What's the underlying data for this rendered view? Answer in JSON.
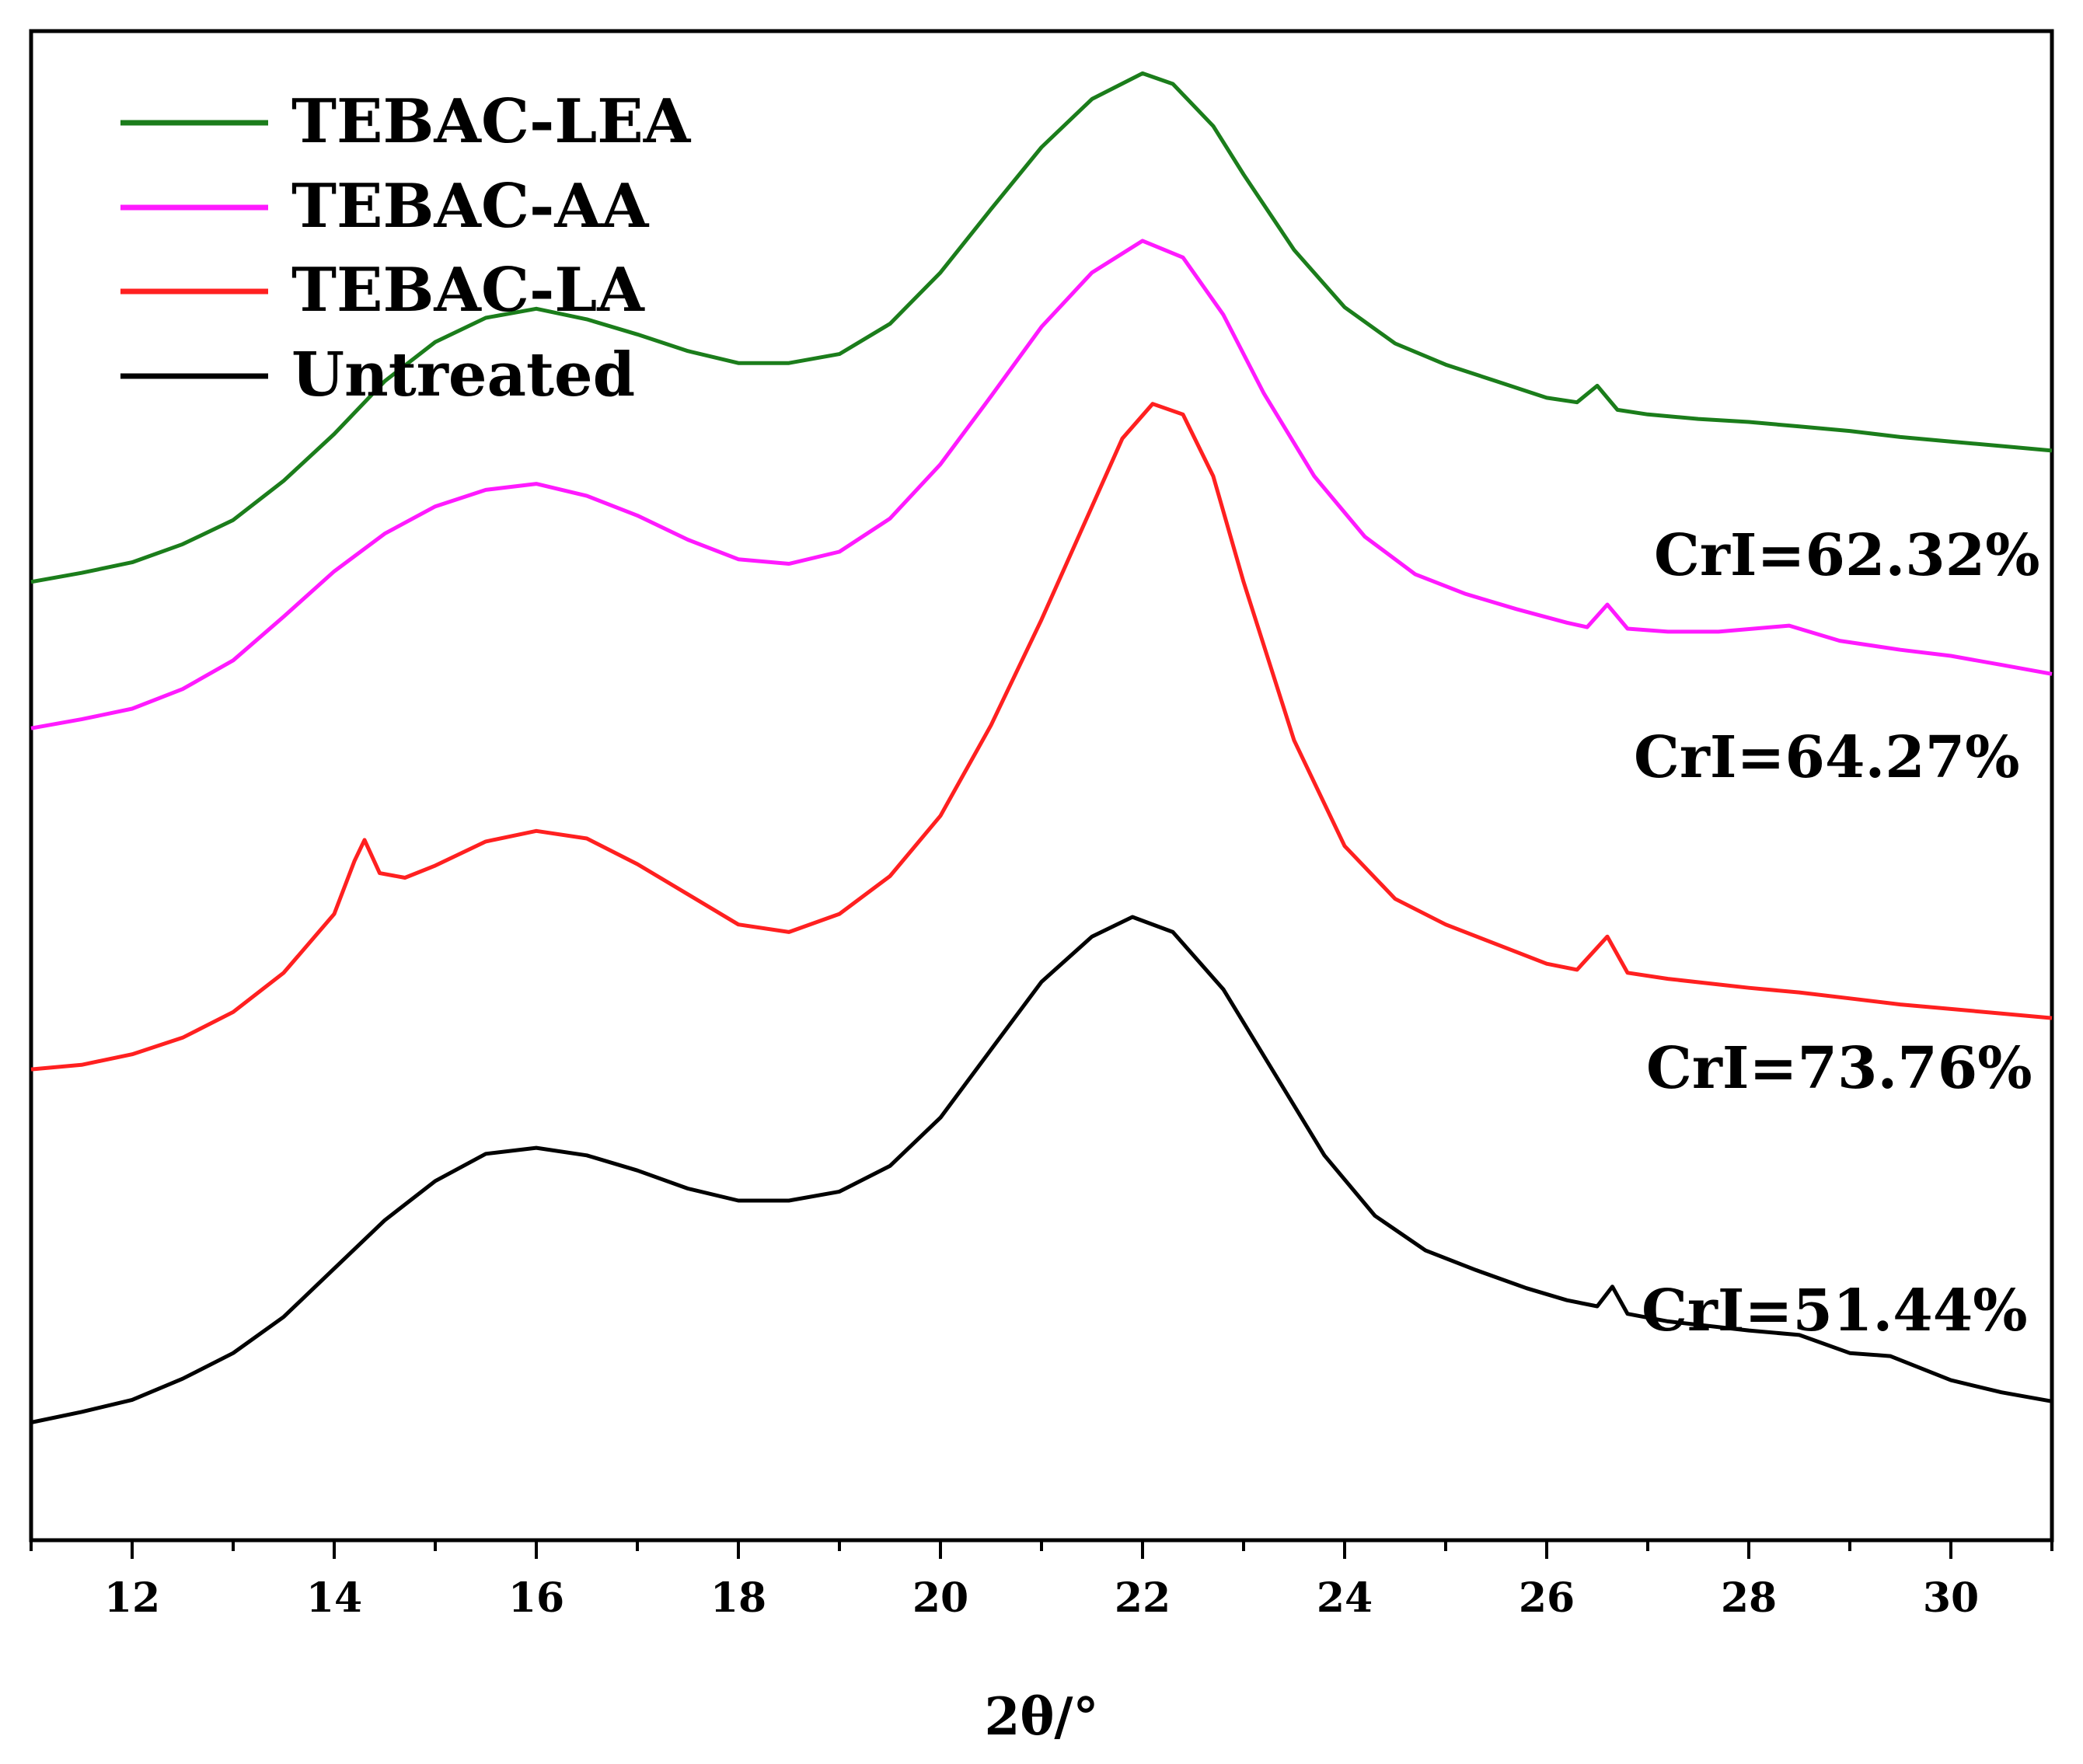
{
  "chart_data": {
    "type": "line",
    "title": "",
    "xlabel": "2θ/°",
    "ylabel": "",
    "xlim": [
      11,
      31
    ],
    "ylim": [
      0,
      100
    ],
    "x_ticks": [
      12,
      14,
      16,
      18,
      20,
      22,
      24,
      26,
      28,
      30
    ],
    "x_tick_labels": [
      "12",
      "14",
      "16",
      "18",
      "20",
      "22",
      "24",
      "26",
      "28",
      "30"
    ],
    "y_ticks_shown": false,
    "legend_position": "top-left",
    "series": [
      {
        "name": "TEBAC-LEA",
        "color": "#1b7d1b",
        "crI_label": "CrI=62.32%",
        "points": [
          [
            11,
            63.5
          ],
          [
            11.5,
            64.1
          ],
          [
            12,
            64.8
          ],
          [
            12.5,
            66.0
          ],
          [
            13,
            67.6
          ],
          [
            13.5,
            70.2
          ],
          [
            14,
            73.3
          ],
          [
            14.5,
            76.8
          ],
          [
            15,
            79.4
          ],
          [
            15.5,
            81.0
          ],
          [
            16,
            81.6
          ],
          [
            16.5,
            80.9
          ],
          [
            17,
            79.9
          ],
          [
            17.5,
            78.8
          ],
          [
            18,
            78.0
          ],
          [
            18.5,
            78.0
          ],
          [
            19,
            78.6
          ],
          [
            19.5,
            80.6
          ],
          [
            20,
            84.0
          ],
          [
            20.5,
            88.2
          ],
          [
            21,
            92.3
          ],
          [
            21.5,
            95.5
          ],
          [
            22,
            97.2
          ],
          [
            22.3,
            96.5
          ],
          [
            22.7,
            93.7
          ],
          [
            23,
            90.5
          ],
          [
            23.5,
            85.5
          ],
          [
            24,
            81.7
          ],
          [
            24.5,
            79.3
          ],
          [
            25,
            77.9
          ],
          [
            25.5,
            76.8
          ],
          [
            26,
            75.7
          ],
          [
            26.3,
            75.4
          ],
          [
            26.5,
            76.5
          ],
          [
            26.7,
            74.9
          ],
          [
            27,
            74.6
          ],
          [
            27.5,
            74.3
          ],
          [
            28,
            74.1
          ],
          [
            28.5,
            73.8
          ],
          [
            29,
            73.5
          ],
          [
            29.5,
            73.1
          ],
          [
            30,
            72.8
          ],
          [
            30.5,
            72.5
          ],
          [
            31,
            72.2
          ]
        ]
      },
      {
        "name": "TEBAC-AA",
        "color": "#ff1aff",
        "crI_label": "CrI=64.27%",
        "points": [
          [
            11,
            53.8
          ],
          [
            11.5,
            54.4
          ],
          [
            12,
            55.1
          ],
          [
            12.5,
            56.4
          ],
          [
            13,
            58.3
          ],
          [
            13.5,
            61.2
          ],
          [
            14,
            64.2
          ],
          [
            14.5,
            66.7
          ],
          [
            15,
            68.5
          ],
          [
            15.5,
            69.6
          ],
          [
            16,
            70.0
          ],
          [
            16.5,
            69.2
          ],
          [
            17,
            67.9
          ],
          [
            17.5,
            66.3
          ],
          [
            18,
            65.0
          ],
          [
            18.5,
            64.7
          ],
          [
            19,
            65.5
          ],
          [
            19.5,
            67.7
          ],
          [
            20,
            71.3
          ],
          [
            20.5,
            75.8
          ],
          [
            21,
            80.4
          ],
          [
            21.5,
            84.0
          ],
          [
            22,
            86.1
          ],
          [
            22.4,
            85.0
          ],
          [
            22.8,
            81.2
          ],
          [
            23.2,
            76.0
          ],
          [
            23.7,
            70.5
          ],
          [
            24.2,
            66.5
          ],
          [
            24.7,
            64.0
          ],
          [
            25.2,
            62.7
          ],
          [
            25.7,
            61.7
          ],
          [
            26.2,
            60.8
          ],
          [
            26.4,
            60.5
          ],
          [
            26.6,
            62.0
          ],
          [
            26.8,
            60.4
          ],
          [
            27.2,
            60.2
          ],
          [
            27.7,
            60.2
          ],
          [
            28.4,
            60.6
          ],
          [
            28.9,
            59.6
          ],
          [
            29.5,
            59.0
          ],
          [
            30,
            58.6
          ],
          [
            30.5,
            58.0
          ],
          [
            31,
            57.4
          ]
        ]
      },
      {
        "name": "TEBAC-LA",
        "color": "#ff2020",
        "crI_label": "CrI=73.76%",
        "points": [
          [
            11,
            31.2
          ],
          [
            11.5,
            31.5
          ],
          [
            12,
            32.2
          ],
          [
            12.5,
            33.3
          ],
          [
            13,
            35.0
          ],
          [
            13.5,
            37.6
          ],
          [
            14,
            41.5
          ],
          [
            14.2,
            45.0
          ],
          [
            14.3,
            46.4
          ],
          [
            14.45,
            44.2
          ],
          [
            14.7,
            43.9
          ],
          [
            15,
            44.7
          ],
          [
            15.5,
            46.3
          ],
          [
            16,
            47.0
          ],
          [
            16.5,
            46.5
          ],
          [
            17,
            44.8
          ],
          [
            17.5,
            42.8
          ],
          [
            18,
            40.8
          ],
          [
            18.5,
            40.3
          ],
          [
            19,
            41.5
          ],
          [
            19.5,
            44.0
          ],
          [
            20,
            48.0
          ],
          [
            20.5,
            54.0
          ],
          [
            21,
            61.0
          ],
          [
            21.5,
            68.5
          ],
          [
            21.8,
            73.0
          ],
          [
            22.1,
            75.3
          ],
          [
            22.4,
            74.6
          ],
          [
            22.7,
            70.5
          ],
          [
            23,
            63.5
          ],
          [
            23.5,
            53.0
          ],
          [
            24,
            46.0
          ],
          [
            24.5,
            42.5
          ],
          [
            25,
            40.8
          ],
          [
            25.5,
            39.5
          ],
          [
            26,
            38.2
          ],
          [
            26.3,
            37.8
          ],
          [
            26.6,
            40.0
          ],
          [
            26.8,
            37.6
          ],
          [
            27.2,
            37.2
          ],
          [
            28,
            36.6
          ],
          [
            28.5,
            36.3
          ],
          [
            29,
            35.9
          ],
          [
            29.5,
            35.5
          ],
          [
            30,
            35.2
          ],
          [
            30.5,
            34.9
          ],
          [
            31,
            34.6
          ]
        ]
      },
      {
        "name": "Untreated",
        "color": "#000000",
        "crI_label": "CrI=51.44%",
        "points": [
          [
            11,
            7.8
          ],
          [
            11.5,
            8.5
          ],
          [
            12,
            9.3
          ],
          [
            12.5,
            10.7
          ],
          [
            13,
            12.4
          ],
          [
            13.5,
            14.8
          ],
          [
            14,
            18.0
          ],
          [
            14.5,
            21.2
          ],
          [
            15,
            23.8
          ],
          [
            15.5,
            25.6
          ],
          [
            16,
            26.0
          ],
          [
            16.5,
            25.5
          ],
          [
            17,
            24.5
          ],
          [
            17.5,
            23.3
          ],
          [
            18,
            22.5
          ],
          [
            18.5,
            22.5
          ],
          [
            19,
            23.1
          ],
          [
            19.5,
            24.8
          ],
          [
            20,
            28.0
          ],
          [
            20.5,
            32.5
          ],
          [
            21,
            37.0
          ],
          [
            21.5,
            40.0
          ],
          [
            21.9,
            41.3
          ],
          [
            22.3,
            40.3
          ],
          [
            22.8,
            36.5
          ],
          [
            23.3,
            31.0
          ],
          [
            23.8,
            25.5
          ],
          [
            24.3,
            21.5
          ],
          [
            24.8,
            19.2
          ],
          [
            25.3,
            17.9
          ],
          [
            25.8,
            16.7
          ],
          [
            26.2,
            15.9
          ],
          [
            26.5,
            15.5
          ],
          [
            26.65,
            16.8
          ],
          [
            26.8,
            15.0
          ],
          [
            27.2,
            14.5
          ],
          [
            28,
            13.9
          ],
          [
            28.5,
            13.6
          ],
          [
            29,
            12.4
          ],
          [
            29.4,
            12.2
          ],
          [
            30,
            10.6
          ],
          [
            30.5,
            9.8
          ],
          [
            31,
            9.2
          ]
        ]
      }
    ]
  }
}
